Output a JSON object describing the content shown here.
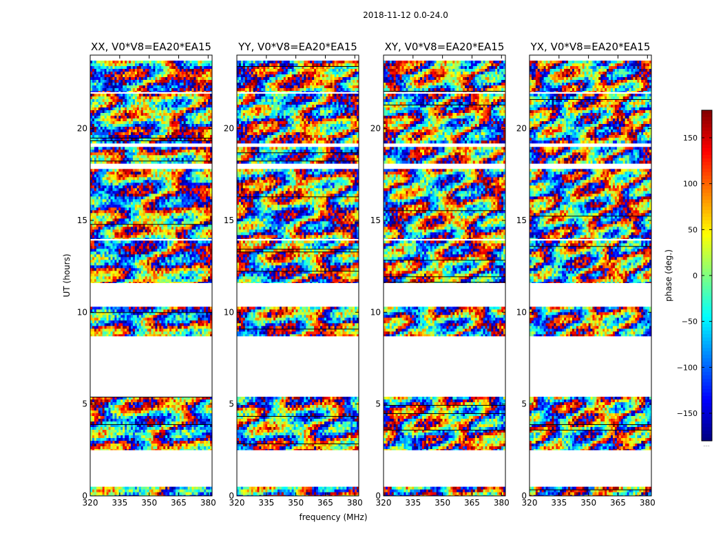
{
  "chart_data": {
    "type": "heatmap",
    "suptitle": "2018-11-12 0.0-24.0",
    "xlabel": "frequency (MHz)",
    "ylabel": "UT (hours)",
    "xlim": [
      320,
      382
    ],
    "ylim": [
      0,
      24
    ],
    "xticks": [
      320,
      335,
      350,
      365,
      380
    ],
    "yticks": [
      0,
      5,
      10,
      15,
      20
    ],
    "panels": [
      {
        "title": "XX, V0*V8=EA20*EA15",
        "pol": "XX"
      },
      {
        "title": "YY, V0*V8=EA20*EA15",
        "pol": "YY"
      },
      {
        "title": "XY, V0*V8=EA20*EA15",
        "pol": "XY"
      },
      {
        "title": "YX, V0*V8=EA20*EA15",
        "pol": "YX"
      }
    ],
    "data_blocks_ut_hours": [
      [
        0.0,
        0.5
      ],
      [
        2.5,
        5.4
      ],
      [
        8.7,
        10.3
      ],
      [
        11.6,
        13.9
      ],
      [
        14.0,
        17.8
      ],
      [
        18.1,
        19.0
      ],
      [
        19.2,
        21.9
      ],
      [
        22.0,
        23.7
      ]
    ],
    "colorbar": {
      "label": "phase (deg.)",
      "range": [
        -180,
        180
      ],
      "ticks": [
        150,
        100,
        50,
        0,
        -50,
        -100,
        -150
      ],
      "tick_labels": [
        "150",
        "100",
        "50",
        "0",
        "−50",
        "−100",
        "−150"
      ],
      "colormap": "jet",
      "footnote": "......"
    }
  }
}
